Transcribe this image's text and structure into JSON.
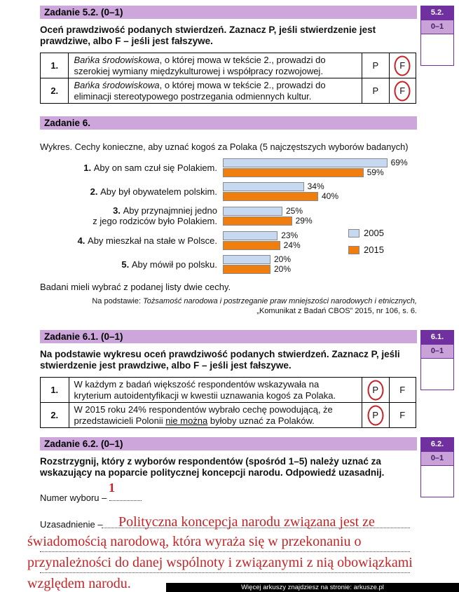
{
  "colors": {
    "header_purple": "#CDA6DC",
    "margin_dark_purple": "#7030A0",
    "margin_light_purple": "#C9A2D8",
    "annotation_red": "#C62326",
    "series_2005": "#C6D9F1",
    "series_2015": "#F07E0E"
  },
  "tasks": {
    "t52": {
      "header": "Zadanie 5.2. (0–1)",
      "margin_id": "5.2.",
      "margin_score": "0–1",
      "instruction": "Oceń prawdziwość podanych stwierdzeń. Zaznacz P, jeśli stwierdzenie jest prawdziwe, albo F – jeśli jest fałszywe.",
      "rows": [
        {
          "num": "1.",
          "italic": "Bańka środowiskowa",
          "rest": ", o której mowa w tekście 2., prowadzi do szerokiej wymiany międzykulturowej i współpracy rozwojowej.",
          "p": "P",
          "f": "F",
          "circled": "F"
        },
        {
          "num": "2.",
          "italic": "Bańka środowiskowa",
          "rest": ", o której mowa w tekście 2., prowadzi do eliminacji stereotypowego postrzegania odmiennych kultur.",
          "p": "P",
          "f": "F",
          "circled": "F"
        }
      ]
    },
    "t6": {
      "header": "Zadanie 6.",
      "note": "Badani mieli wybrać z podanej listy dwie cechy.",
      "source_prefix": "Na podstawie: ",
      "source_title": "Tożsamość narodowa i postrzeganie praw mniejszości narodowych i etnicznych,",
      "source_detail": "„Komunikat z Badań CBOS” 2015, nr 106, s. 6."
    },
    "t61": {
      "header": "Zadanie 6.1. (0–1)",
      "margin_id": "6.1.",
      "margin_score": "0–1",
      "instruction": "Na podstawie wykresu oceń prawdziwość podanych stwierdzeń. Zaznacz P, jeśli stwierdzenie jest prawdziwe, albo F – jeśli jest fałszywe.",
      "rows": [
        {
          "num": "1.",
          "pre": "W każdym z badań większość respondentów wskazywała na kryterium autoidentyfikacji w kwestii uznawania kogoś za Polaka.",
          "underline": "",
          "post": "",
          "p": "P",
          "f": "F",
          "circled": "P"
        },
        {
          "num": "2.",
          "pre": "W 2015 roku 24% respondentów wybrało cechę powodującą, że przedstawicieli Polonii ",
          "underline": "nie można",
          "post": " byłoby uznać za Polaków.",
          "p": "P",
          "f": "F",
          "circled": "P"
        }
      ]
    },
    "t62": {
      "header": "Zadanie 6.2. (0–1)",
      "margin_id": "6.2.",
      "margin_score": "0–1",
      "instruction": "Rozstrzygnij, który z wyborów respondentów (spośród 1–5) należy uznać za wskazujący na poparcie politycznej koncepcji narodu. Odpowiedź uzasadnij.",
      "numer_label": "Numer wyboru –",
      "answer_number": "1",
      "uzasadnienie_label": "Uzasadnienie –",
      "answer_line1": "Polityczna koncepcja narodu związana jest ze",
      "answer_lines": [
        "świadomością narodową, która wyraża się w przekonaniu o",
        "przynależności do danej wspólnoty i związanymi z nią obowiązkami",
        "względem narodu."
      ]
    }
  },
  "chart_data": {
    "type": "bar",
    "orientation": "horizontal",
    "title": "Wykres. Cechy konieczne, aby uznać kogoś za Polaka (5 najczęstszych wyborów badanych)",
    "categories": [
      "1. Aby on sam czuł się Polakiem.",
      "2. Aby był obywatelem polskim.",
      "3. Aby przynajmniej jedno\nz jego rodziców było Polakiem.",
      "4. Aby mieszkał na stałe w Polsce.",
      "5. Aby mówił po polsku."
    ],
    "series": [
      {
        "name": "2005",
        "color": "#C6D9F1",
        "values": [
          69,
          34,
          25,
          23,
          20
        ]
      },
      {
        "name": "2015",
        "color": "#F07E0E",
        "values": [
          59,
          40,
          29,
          24,
          20
        ]
      }
    ],
    "value_suffix": "%",
    "xlim": [
      0,
      75
    ],
    "legend_position": "right",
    "grid": false
  },
  "footer": {
    "watermark": "Więcej arkuszy znajdziesz na stronie: arkusze.pl"
  }
}
